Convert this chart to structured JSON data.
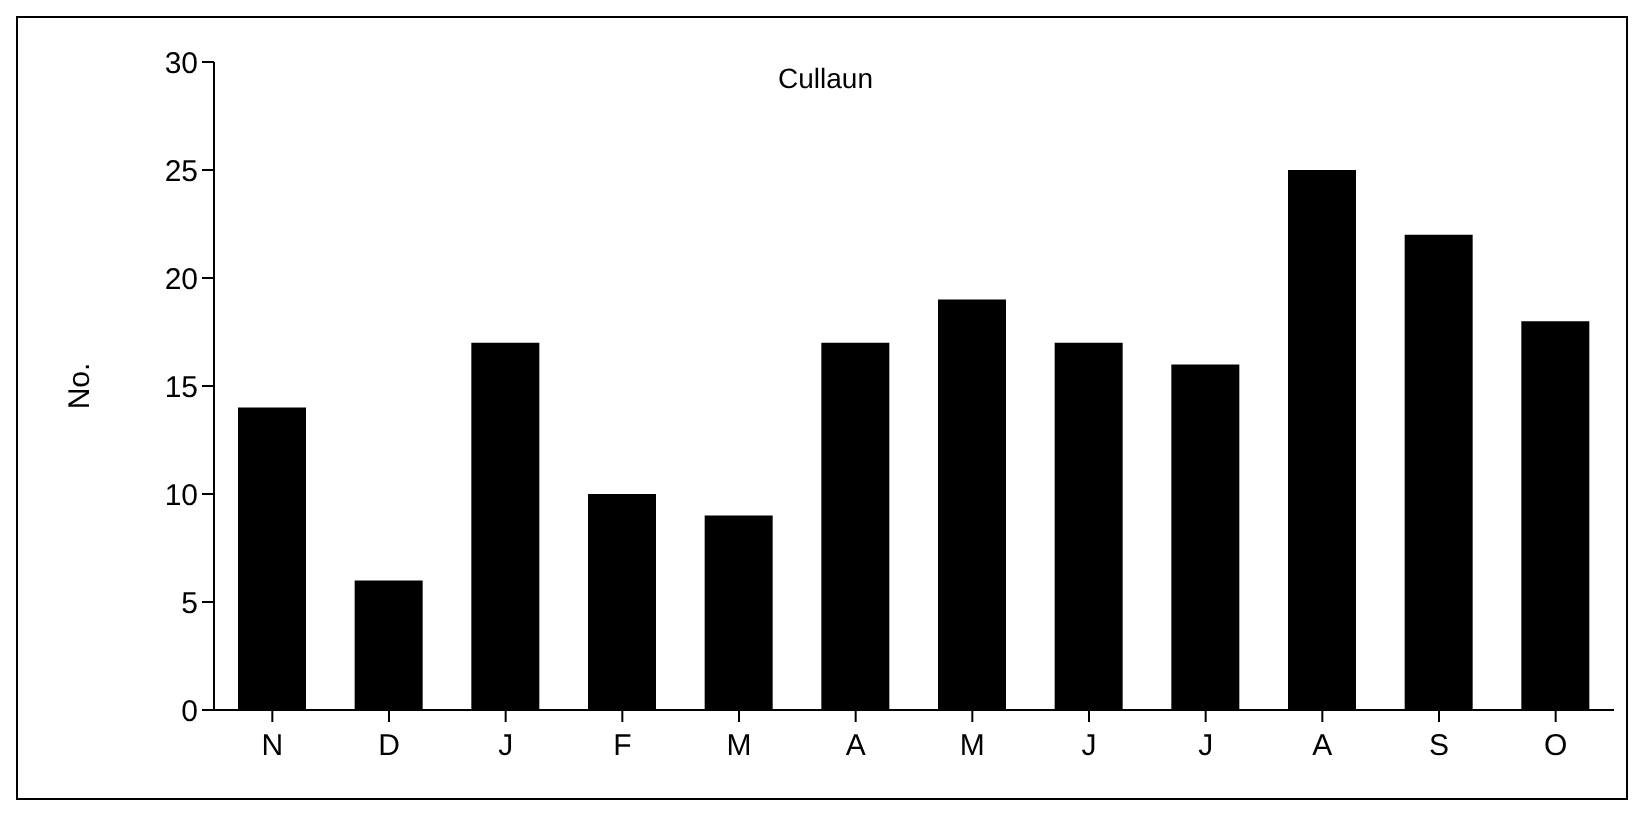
{
  "chart_data": {
    "type": "bar",
    "title": "Cullaun",
    "ylabel": "No.",
    "categories": [
      "N",
      "D",
      "J",
      "F",
      "M",
      "A",
      "M",
      "J",
      "J",
      "A",
      "S",
      "O"
    ],
    "values": [
      14,
      6,
      17,
      10,
      9,
      17,
      19,
      17,
      16,
      25,
      22,
      18
    ],
    "color": "#000000",
    "ylim": [
      0,
      30
    ],
    "yticks": [
      0,
      5,
      10,
      15,
      20,
      25,
      30
    ],
    "grid": false,
    "legend": false
  }
}
